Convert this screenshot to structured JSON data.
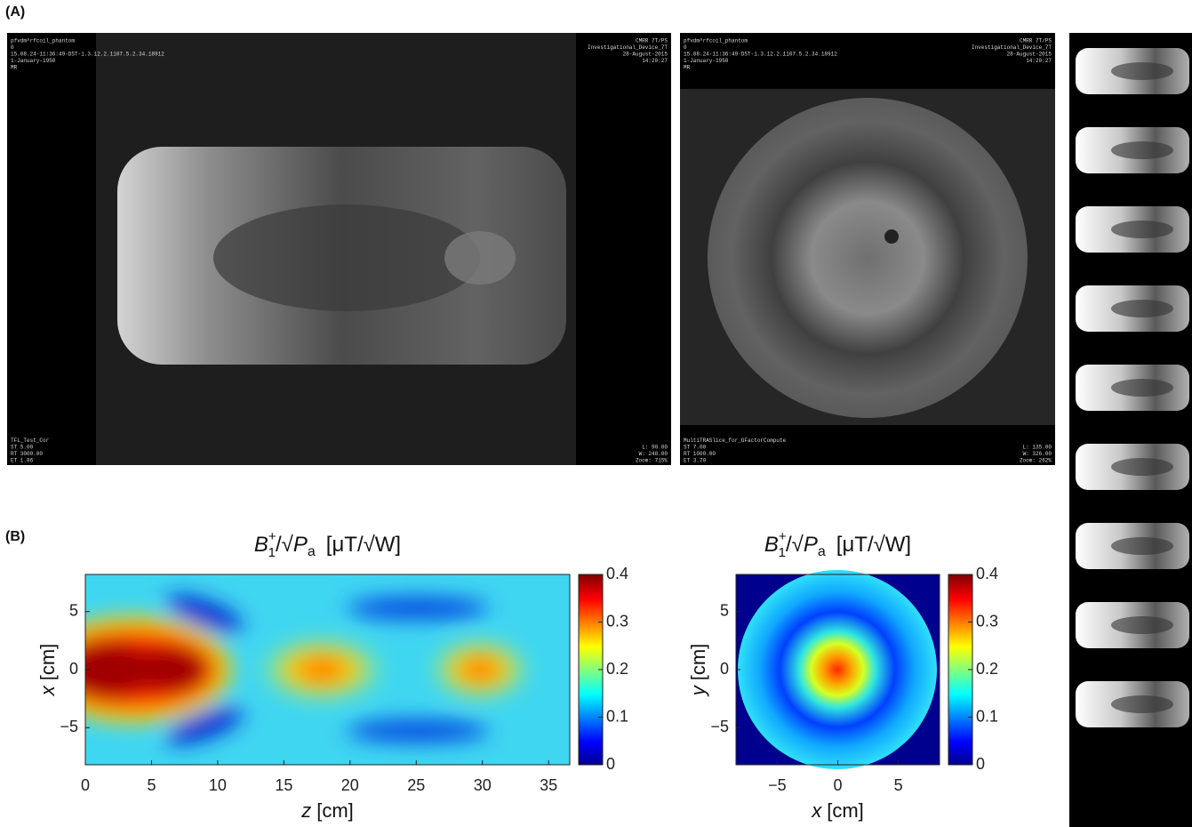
{
  "panel_a": {
    "label": "(A)",
    "images": [
      {
        "overlay": {
          "top_left": [
            "pfvdm^rfcoil_phantom",
            "0",
            "15.08.24-11:36:49-DST-1.3.12.2.1107.5.2.34.18912",
            "1-January-1950",
            "MR"
          ],
          "top_right": [
            "CMRR 7T/PS",
            "Investigational_Device_7T",
            "28-August-2015",
            "14:20:27"
          ],
          "bottom_left": [
            "TFL_Test_Cor",
            "ST 5.00",
            "RT 3000.00",
            "ET 1.86"
          ],
          "bottom_right": [
            "L: 90.00",
            "W: 248.00",
            "Zoom: 715%"
          ]
        }
      },
      {
        "overlay": {
          "top_left": [
            "pfvdm^rfcoil_phantom",
            "0",
            "15.08.24-11:36:49-DST-1.3.12.2.1107.5.2.34.18912",
            "1-January-1950",
            "MR"
          ],
          "top_right": [
            "CMRR 7T/PS",
            "Investigational_Device_7T",
            "28-August-2015",
            "14:20:27"
          ],
          "bottom_left": [
            "MultiTRASlice_for_GFactorCompute",
            "ST 7.00",
            "RT 1000.00",
            "ET 3.70"
          ],
          "bottom_right": [
            "L: 135.00",
            "W: 326.00",
            "Zoom: 262%"
          ]
        }
      }
    ]
  },
  "panel_b": {
    "label": "(B)"
  },
  "chart_data": [
    {
      "type": "heatmap",
      "colormap": "jet",
      "title": {
        "base": "B",
        "sup": "+",
        "sub": "1",
        "sep": "/√",
        "base2": "P",
        "sub2": "a",
        "unit": "[μT/√W]"
      },
      "xlabel": {
        "var": "z",
        "unit": "[cm]"
      },
      "ylabel": {
        "var": "x",
        "unit": "[cm]"
      },
      "xlim": [
        0,
        36.6
      ],
      "xticks": [
        0,
        5,
        10,
        15,
        20,
        25,
        30,
        35
      ],
      "ylim": [
        -8.2,
        8.2
      ],
      "yticks": [
        {
          "value": -5,
          "label": "−5"
        },
        0,
        5
      ],
      "clim": [
        0,
        0.4
      ],
      "cticks": [
        0,
        0.1,
        0.2,
        0.3,
        0.4
      ]
    },
    {
      "type": "heatmap",
      "colormap": "jet",
      "title": {
        "base": "B",
        "sup": "+",
        "sub": "1",
        "sep": "/√",
        "base2": "P",
        "sub2": "a",
        "unit": "[μT/√W]"
      },
      "xlabel": {
        "var": "x",
        "unit": "[cm]"
      },
      "ylabel": {
        "var": "y",
        "unit": "[cm]"
      },
      "xlim": [
        -8.4,
        8.4
      ],
      "xticks": [
        {
          "value": -5,
          "label": "−5"
        },
        0,
        5
      ],
      "ylim": [
        -8.2,
        8.2
      ],
      "yticks": [
        {
          "value": -5,
          "label": "−5"
        },
        0,
        5
      ],
      "clim": [
        0,
        0.4
      ],
      "cticks": [
        0,
        0.1,
        0.2,
        0.3,
        0.4
      ]
    }
  ]
}
